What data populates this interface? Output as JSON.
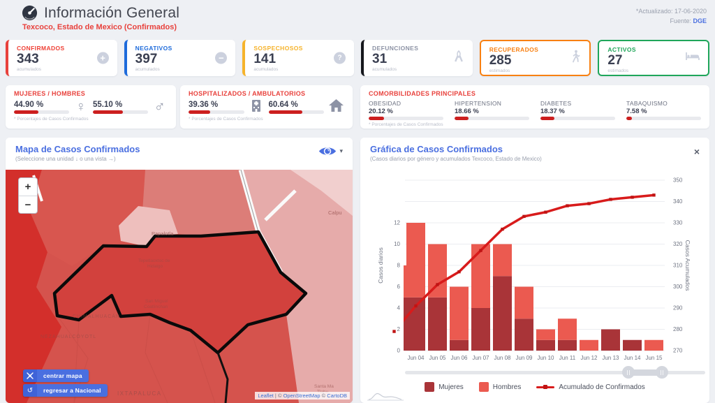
{
  "header": {
    "title": "Información General",
    "subtitle": "Texcoco, Estado de Mexico (Confirmados)",
    "updated": "*Actualizado: 17-06-2020",
    "source_label": "Fuente:",
    "source_value": "DGE"
  },
  "colors": {
    "accent_red": "#e8413c",
    "accent_blue": "#4a6fe0",
    "confirmados": "#ef4136",
    "negativos": "#1e6bdb",
    "sospechosos": "#f6b32b",
    "defunciones": "#15171c",
    "recuperados": "#f88012",
    "activos": "#1fa65a",
    "bar_mujeres": "#a93438",
    "bar_hombres": "#eb5a50",
    "line_acumulado": "#d81b1b"
  },
  "stat_cards": [
    {
      "label": "CONFIRMADOS",
      "value": "343",
      "sub": "acumulados"
    },
    {
      "label": "NEGATIVOS",
      "value": "397",
      "sub": "acumulados"
    },
    {
      "label": "SOSPECHOSOS",
      "value": "141",
      "sub": "acumulados"
    },
    {
      "label": "DEFUNCIONES",
      "value": "31",
      "sub": "acumulados"
    },
    {
      "label": "RECUPERADOS",
      "value": "285",
      "sub": "estimados"
    },
    {
      "label": "ACTIVOS",
      "value": "27",
      "sub": "estimados"
    }
  ],
  "gender_card": {
    "title": "MUJERES / HOMBRES",
    "left": {
      "pct_label": "44.90 %",
      "pct": 44.9
    },
    "right": {
      "pct_label": "55.10 %",
      "pct": 55.1
    },
    "footnote": "* Porcentajes de Casos Confirmados"
  },
  "hosp_card": {
    "title": "HOSPITALIZADOS / AMBULATORIOS",
    "left": {
      "pct_label": "39.36 %",
      "pct": 39.36
    },
    "right": {
      "pct_label": "60.64 %",
      "pct": 60.64
    },
    "footnote": "* Porcentajes de Casos Confirmados"
  },
  "comorbidities": {
    "title": "COMORBILIDADES PRINCIPALES",
    "items": [
      {
        "label": "OBESIDAD",
        "pct_label": "20.12 %",
        "pct": 20.12
      },
      {
        "label": "HIPERTENSION",
        "pct_label": "18.66 %",
        "pct": 18.66
      },
      {
        "label": "DIABETES",
        "pct_label": "18.37 %",
        "pct": 18.37
      },
      {
        "label": "TABAQUISMO",
        "pct_label": "7.58 %",
        "pct": 7.58
      }
    ],
    "footnote": "* Porcentajes de Casos Confirmados"
  },
  "map_panel": {
    "title": "Mapa de Casos Confirmados",
    "subtitle": "(Seleccione una unidad ↓ o una vista →)",
    "zoom_in": "+",
    "zoom_out": "−",
    "center_button": "centrar mapa",
    "back_button": "regresar a Nacional",
    "attribution": {
      "leaflet": "Leaflet",
      "sep1": " | © ",
      "osm": "OpenStreetMap",
      "sep2": " © ",
      "carto": "CartoDB"
    },
    "region_labels": [
      "Papalotla",
      "Calpu",
      "Tepetlaoxtoc de",
      "Hidalgo",
      "San Miguel",
      "Coatlinchan",
      "CHIMALHUACÁN",
      "NEZAHUALCÓYOTL",
      "IXTAPALUCA",
      "Santa Ma",
      "Tlahu"
    ]
  },
  "chart_panel": {
    "title": "Gráfica de Casos Confirmados",
    "subtitle": "(Casos diarios por género y acumulados Texcoco, Estado de Mexico)",
    "close": "×"
  },
  "chart_data": {
    "type": "bar",
    "stacked": true,
    "title": "Gráfica de Casos Confirmados",
    "categories": [
      "Jun 04",
      "Jun 05",
      "Jun 06",
      "Jun 07",
      "Jun 08",
      "Jun 09",
      "Jun 10",
      "Jun 11",
      "Jun 12",
      "Jun 13",
      "Jun 14",
      "Jun 15"
    ],
    "series": [
      {
        "name": "Mujeres",
        "color": "#a93438",
        "values": [
          5,
          5,
          1,
          4,
          7,
          3,
          1,
          1,
          0,
          2,
          1,
          0
        ]
      },
      {
        "name": "Hombres",
        "color": "#eb5a50",
        "values": [
          7,
          5,
          5,
          6,
          3,
          3,
          1,
          2,
          1,
          0,
          0,
          1
        ]
      }
    ],
    "line": {
      "name": "Acumulado de Confirmados",
      "color": "#d81b1b",
      "values": [
        291,
        301,
        307,
        317,
        327,
        333,
        335,
        338,
        339,
        341,
        342,
        343
      ],
      "prev_point": 279
    },
    "clipped_bar": {
      "category": "Jun 03",
      "mujeres": 5,
      "hombres": 3
    },
    "xlabel": "",
    "ylabel_left": "Casos diarios",
    "ylabel_right": "Casos Acumulados",
    "ylim_left": [
      0,
      12
    ],
    "yticks_left": [
      0,
      2,
      4,
      6,
      8,
      10,
      12
    ],
    "ylim_right": [
      270,
      350
    ],
    "yticks_right": [
      270,
      280,
      290,
      300,
      310,
      320,
      330,
      340,
      350
    ],
    "grid": true,
    "legend": [
      {
        "label": "Mujeres"
      },
      {
        "label": "Hombres"
      },
      {
        "label": "Acumulado de Confirmados"
      }
    ]
  }
}
